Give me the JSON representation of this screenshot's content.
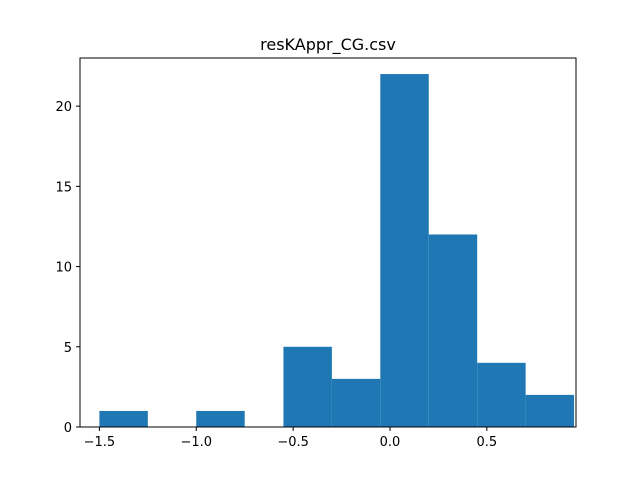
{
  "chart_data": {
    "type": "bar",
    "title": "resKAppr_CG.csv",
    "xlabel": "",
    "ylabel": "",
    "bar_color": "#1f77b4",
    "xlim": [
      -1.6,
      0.96
    ],
    "ylim": [
      0,
      23
    ],
    "bin_edges": [
      -1.53,
      -1.28,
      -1.03,
      -0.78,
      -0.53,
      -0.28,
      -0.03,
      0.22,
      0.47,
      0.72,
      0.97
    ],
    "counts": [
      1,
      0,
      1,
      0,
      5,
      3,
      22,
      12,
      4,
      2
    ],
    "bins": [
      {
        "x0": -1.5,
        "x1": -1.25,
        "count": 1
      },
      {
        "x0": -1.0,
        "x1": -0.75,
        "count": 1
      },
      {
        "x0": -0.55,
        "x1": -0.3,
        "count": 5
      },
      {
        "x0": -0.3,
        "x1": -0.05,
        "count": 3
      },
      {
        "x0": -0.05,
        "x1": 0.2,
        "count": 22
      },
      {
        "x0": 0.2,
        "x1": 0.45,
        "count": 12
      },
      {
        "x0": 0.45,
        "x1": 0.7,
        "count": 4
      },
      {
        "x0": 0.7,
        "x1": 0.95,
        "count": 2
      }
    ],
    "x_ticks": [
      {
        "value": -1.5,
        "label": "−1.5"
      },
      {
        "value": -1.0,
        "label": "−1.0"
      },
      {
        "value": -0.5,
        "label": "−0.5"
      },
      {
        "value": 0.0,
        "label": "0.0"
      },
      {
        "value": 0.5,
        "label": "0.5"
      }
    ],
    "y_ticks": [
      {
        "value": 0,
        "label": "0"
      },
      {
        "value": 5,
        "label": "5"
      },
      {
        "value": 10,
        "label": "10"
      },
      {
        "value": 15,
        "label": "15"
      },
      {
        "value": 20,
        "label": "20"
      }
    ],
    "grid": false,
    "legend": "none"
  }
}
